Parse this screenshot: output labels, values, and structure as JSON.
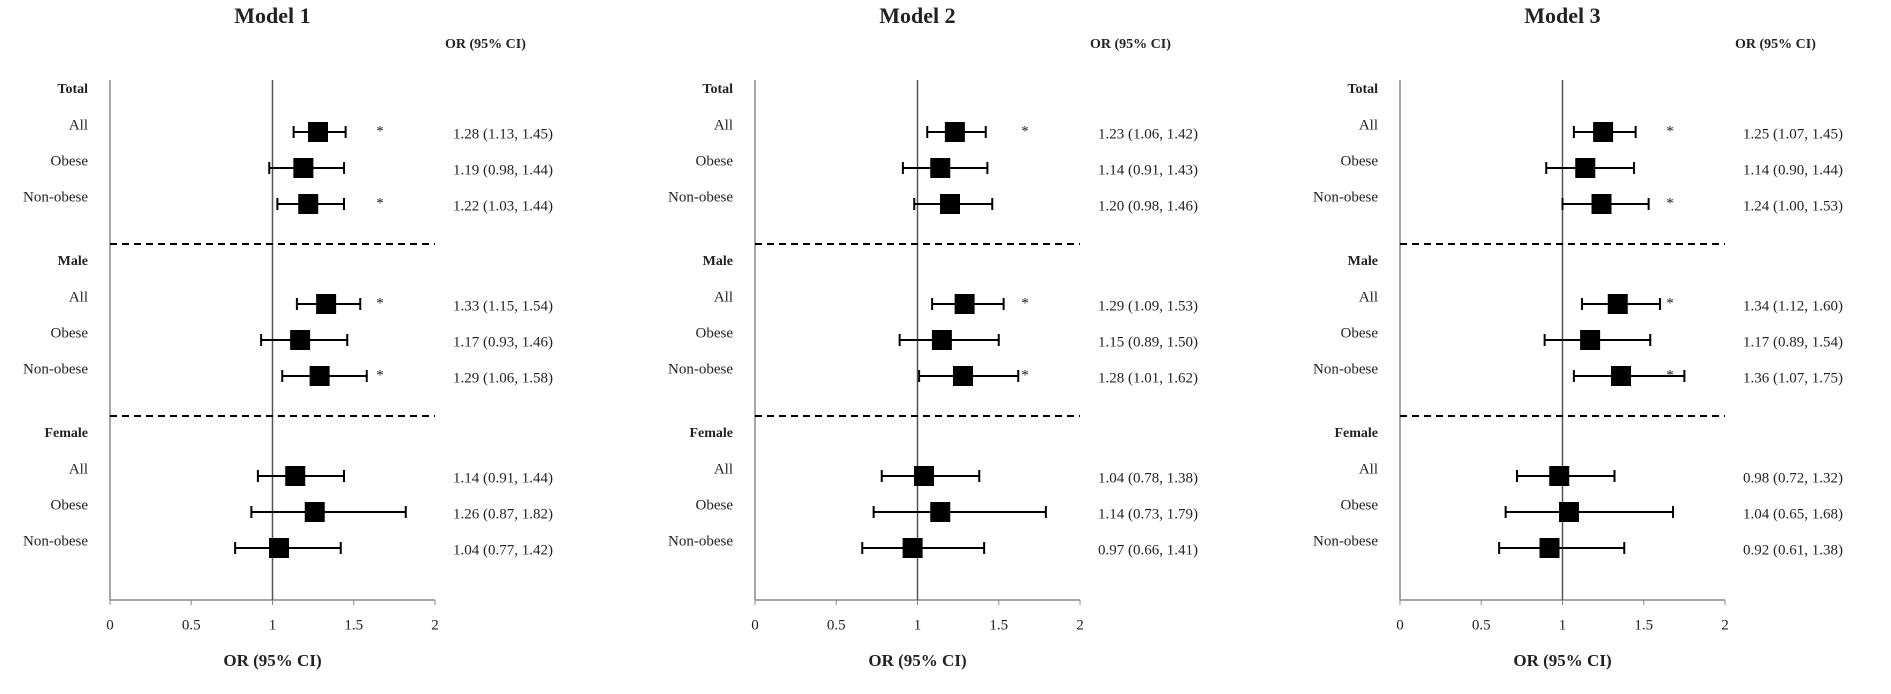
{
  "chart_data": [
    {
      "type": "forest",
      "title": "Model 1",
      "column_header": "OR (95% CI)",
      "x_label": "OR (95% CI)",
      "xlim": [
        0,
        2
      ],
      "xticks": [
        0,
        0.5,
        1,
        1.5,
        2
      ],
      "reference": 1,
      "color": "#000000",
      "groups": [
        {
          "name": "Total",
          "categories": [
            "All",
            "Obese",
            "Non-obese"
          ],
          "values": [
            1.28,
            1.19,
            1.22
          ],
          "lower": [
            1.13,
            0.98,
            1.03
          ],
          "upper": [
            1.45,
            1.44,
            1.44
          ],
          "value_labels": [
            "1.28 (1.13, 1.45)",
            "1.19 (0.98, 1.44)",
            "1.22 (1.03, 1.44)"
          ],
          "markers": [
            "*",
            null,
            "*"
          ]
        },
        {
          "name": "Male",
          "categories": [
            "All",
            "Obese",
            "Non-obese"
          ],
          "values": [
            1.33,
            1.17,
            1.29
          ],
          "lower": [
            1.15,
            0.93,
            1.06
          ],
          "upper": [
            1.54,
            1.46,
            1.58
          ],
          "value_labels": [
            "1.33 (1.15, 1.54)",
            "1.17 (0.93, 1.46)",
            "1.29 (1.06, 1.58)"
          ],
          "markers": [
            "*",
            null,
            "*"
          ]
        },
        {
          "name": "Female",
          "categories": [
            "All",
            "Obese",
            "Non-obese"
          ],
          "values": [
            1.14,
            1.26,
            1.04
          ],
          "lower": [
            0.91,
            0.87,
            0.77
          ],
          "upper": [
            1.44,
            1.82,
            1.42
          ],
          "value_labels": [
            "1.14 (0.91, 1.44)",
            "1.26 (0.87, 1.82)",
            "1.04 (0.77, 1.42)"
          ],
          "markers": [
            null,
            null,
            null
          ]
        }
      ]
    },
    {
      "type": "forest",
      "title": "Model 2",
      "column_header": "OR (95% CI)",
      "x_label": "OR (95% CI)",
      "xlim": [
        0,
        2
      ],
      "xticks": [
        0,
        0.5,
        1,
        1.5,
        2
      ],
      "reference": 1,
      "color": "#000000",
      "groups": [
        {
          "name": "Total",
          "categories": [
            "All",
            "Obese",
            "Non-obese"
          ],
          "values": [
            1.23,
            1.14,
            1.2
          ],
          "lower": [
            1.06,
            0.91,
            0.98
          ],
          "upper": [
            1.42,
            1.43,
            1.46
          ],
          "value_labels": [
            "1.23 (1.06, 1.42)",
            "1.14 (0.91, 1.43)",
            "1.20 (0.98, 1.46)"
          ],
          "markers": [
            "*",
            null,
            null
          ]
        },
        {
          "name": "Male",
          "categories": [
            "All",
            "Obese",
            "Non-obese"
          ],
          "values": [
            1.29,
            1.15,
            1.28
          ],
          "lower": [
            1.09,
            0.89,
            1.01
          ],
          "upper": [
            1.53,
            1.5,
            1.62
          ],
          "value_labels": [
            "1.29 (1.09, 1.53)",
            "1.15 (0.89, 1.50)",
            "1.28 (1.01, 1.62)"
          ],
          "markers": [
            "*",
            null,
            "*"
          ]
        },
        {
          "name": "Female",
          "categories": [
            "All",
            "Obese",
            "Non-obese"
          ],
          "values": [
            1.04,
            1.14,
            0.97
          ],
          "lower": [
            0.78,
            0.73,
            0.66
          ],
          "upper": [
            1.38,
            1.79,
            1.41
          ],
          "value_labels": [
            "1.04 (0.78, 1.38)",
            "1.14 (0.73, 1.79)",
            "0.97 (0.66, 1.41)"
          ],
          "markers": [
            null,
            null,
            null
          ]
        }
      ]
    },
    {
      "type": "forest",
      "title": "Model 3",
      "column_header": "OR (95% CI)",
      "x_label": "OR (95% CI)",
      "xlim": [
        0,
        2
      ],
      "xticks": [
        0,
        0.5,
        1,
        1.5,
        2
      ],
      "reference": 1,
      "color": "#000000",
      "groups": [
        {
          "name": "Total",
          "categories": [
            "All",
            "Obese",
            "Non-obese"
          ],
          "values": [
            1.25,
            1.14,
            1.24
          ],
          "lower": [
            1.07,
            0.9,
            1.0
          ],
          "upper": [
            1.45,
            1.44,
            1.53
          ],
          "value_labels": [
            "1.25 (1.07, 1.45)",
            "1.14 (0.90, 1.44)",
            "1.24 (1.00, 1.53)"
          ],
          "markers": [
            "*",
            null,
            "*"
          ]
        },
        {
          "name": "Male",
          "categories": [
            "All",
            "Obese",
            "Non-obese"
          ],
          "values": [
            1.34,
            1.17,
            1.36
          ],
          "lower": [
            1.12,
            0.89,
            1.07
          ],
          "upper": [
            1.6,
            1.54,
            1.75
          ],
          "value_labels": [
            "1.34 (1.12, 1.60)",
            "1.17 (0.89, 1.54)",
            "1.36 (1.07, 1.75)"
          ],
          "markers": [
            "*",
            null,
            "*"
          ]
        },
        {
          "name": "Female",
          "categories": [
            "All",
            "Obese",
            "Non-obese"
          ],
          "values": [
            0.98,
            1.04,
            0.92
          ],
          "lower": [
            0.72,
            0.65,
            0.61
          ],
          "upper": [
            1.32,
            1.68,
            1.38
          ],
          "value_labels": [
            "0.98 (0.72, 1.32)",
            "1.04 (0.65, 1.68)",
            "0.92 (0.61, 1.38)"
          ],
          "markers": [
            null,
            null,
            null
          ]
        }
      ]
    }
  ]
}
